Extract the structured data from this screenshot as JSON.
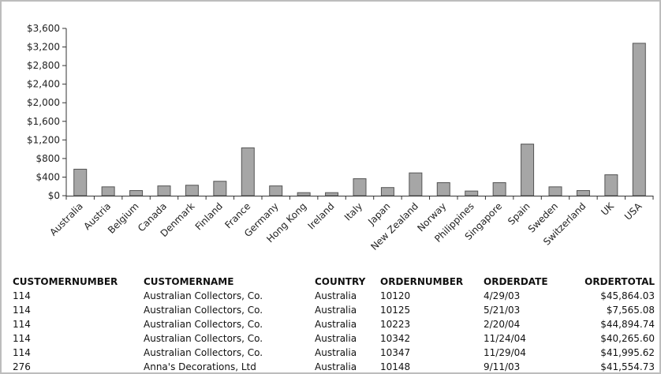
{
  "colors": {
    "bar_fill": "#a6a6a6",
    "bar_stroke": "#555555",
    "axis": "#333333",
    "border": "#bdbdbd"
  },
  "chart_data": {
    "type": "bar",
    "title": "",
    "xlabel": "",
    "ylabel": "",
    "ylim": [
      0,
      3600
    ],
    "y_ticks": [
      0,
      400,
      800,
      1200,
      1600,
      2000,
      2400,
      2800,
      3200,
      3600
    ],
    "y_tick_labels": [
      "$0",
      "$400",
      "$800",
      "$1,200",
      "$1,600",
      "$2,000",
      "$2,400",
      "$2,800",
      "$3,200",
      "$3,600"
    ],
    "grid": false,
    "categories": [
      "Australia",
      "Austria",
      "Belgium",
      "Canada",
      "Denmark",
      "Finland",
      "France",
      "Germany",
      "Hong Kong",
      "Ireland",
      "Italy",
      "Japan",
      "New Zealand",
      "Norway",
      "Philippines",
      "Singapore",
      "Spain",
      "Sweden",
      "Switzerland",
      "UK",
      "USA"
    ],
    "values": [
      570,
      190,
      110,
      210,
      225,
      310,
      1030,
      210,
      65,
      65,
      365,
      175,
      490,
      280,
      100,
      280,
      1110,
      190,
      110,
      450,
      3280
    ]
  },
  "table": {
    "headers": [
      "CUSTOMERNUMBER",
      "CUSTOMERNAME",
      "COUNTRY",
      "ORDERNUMBER",
      "ORDERDATE",
      "ORDERTOTAL"
    ],
    "rows": [
      [
        "114",
        "Australian Collectors, Co.",
        "Australia",
        "10120",
        "4/29/03",
        "$45,864.03"
      ],
      [
        "114",
        "Australian Collectors, Co.",
        "Australia",
        "10125",
        "5/21/03",
        "$7,565.08"
      ],
      [
        "114",
        "Australian Collectors, Co.",
        "Australia",
        "10223",
        "2/20/04",
        "$44,894.74"
      ],
      [
        "114",
        "Australian Collectors, Co.",
        "Australia",
        "10342",
        "11/24/04",
        "$40,265.60"
      ],
      [
        "114",
        "Australian Collectors, Co.",
        "Australia",
        "10347",
        "11/29/04",
        "$41,995.62"
      ],
      [
        "276",
        "Anna's Decorations, Ltd",
        "Australia",
        "10148",
        "9/11/03",
        "$41,554.73"
      ]
    ]
  }
}
